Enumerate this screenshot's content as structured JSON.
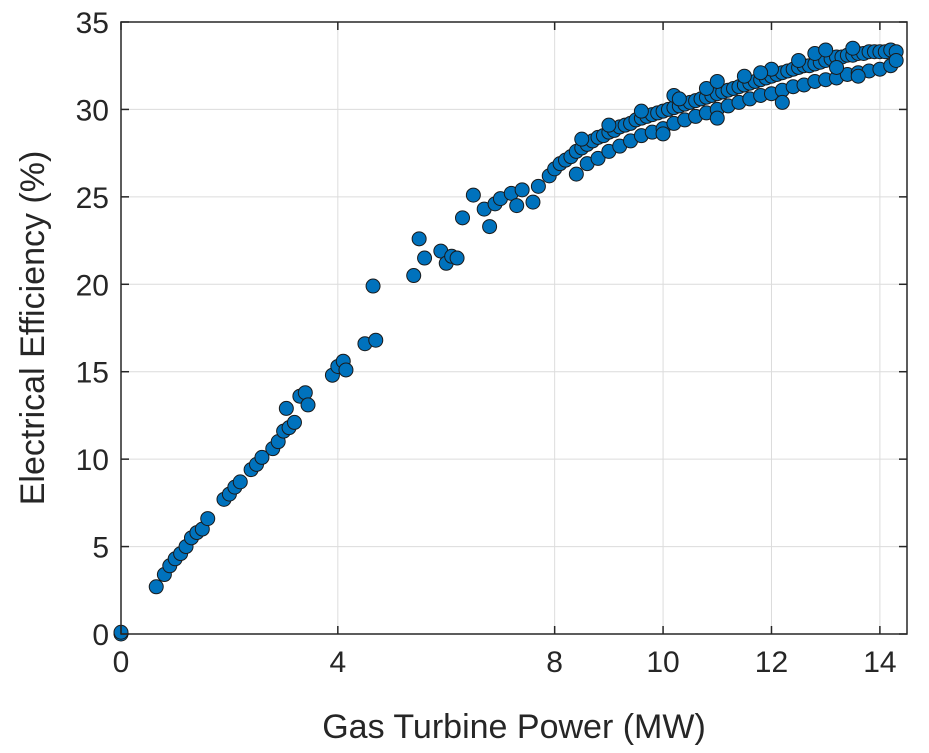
{
  "chart_data": {
    "type": "scatter",
    "title": "",
    "xlabel": "Gas Turbine Power (MW)",
    "ylabel": "Electrical Efficiency (%)",
    "xlim": [
      0,
      14.5
    ],
    "ylim": [
      0,
      35
    ],
    "xticks": [
      0,
      4,
      8,
      10,
      12,
      14
    ],
    "yticks": [
      0,
      5,
      10,
      15,
      20,
      25,
      30,
      35
    ],
    "grid": true,
    "legend": "none",
    "marker": {
      "shape": "circle",
      "fill": "#0072BD",
      "edge": "#1a1a1a"
    },
    "series": [
      {
        "points": [
          [
            0.0,
            0.0
          ],
          [
            0.0,
            0.1
          ],
          [
            0.65,
            2.7
          ],
          [
            0.8,
            3.4
          ],
          [
            0.9,
            3.9
          ],
          [
            1.0,
            4.3
          ],
          [
            1.1,
            4.6
          ],
          [
            1.2,
            5.0
          ],
          [
            1.3,
            5.5
          ],
          [
            1.4,
            5.8
          ],
          [
            1.5,
            6.0
          ],
          [
            1.6,
            6.6
          ],
          [
            1.9,
            7.7
          ],
          [
            2.0,
            8.0
          ],
          [
            2.1,
            8.4
          ],
          [
            2.2,
            8.7
          ],
          [
            2.4,
            9.4
          ],
          [
            2.5,
            9.7
          ],
          [
            2.6,
            10.1
          ],
          [
            2.8,
            10.6
          ],
          [
            2.9,
            11.0
          ],
          [
            3.0,
            11.6
          ],
          [
            3.1,
            11.8
          ],
          [
            3.2,
            12.1
          ],
          [
            3.05,
            12.9
          ],
          [
            3.3,
            13.6
          ],
          [
            3.4,
            13.8
          ],
          [
            3.45,
            13.1
          ],
          [
            3.9,
            14.8
          ],
          [
            4.0,
            15.3
          ],
          [
            4.1,
            15.6
          ],
          [
            4.15,
            15.1
          ],
          [
            4.5,
            16.6
          ],
          [
            4.7,
            16.8
          ],
          [
            4.65,
            19.9
          ],
          [
            5.4,
            20.5
          ],
          [
            5.5,
            22.6
          ],
          [
            5.6,
            21.5
          ],
          [
            5.9,
            21.9
          ],
          [
            6.0,
            21.2
          ],
          [
            6.1,
            21.6
          ],
          [
            6.2,
            21.5
          ],
          [
            6.3,
            23.8
          ],
          [
            6.5,
            25.1
          ],
          [
            6.7,
            24.3
          ],
          [
            6.8,
            23.3
          ],
          [
            6.9,
            24.6
          ],
          [
            7.0,
            24.9
          ],
          [
            7.2,
            25.2
          ],
          [
            7.3,
            24.5
          ],
          [
            7.4,
            25.4
          ],
          [
            7.6,
            24.7
          ],
          [
            7.7,
            25.6
          ],
          [
            7.9,
            26.2
          ],
          [
            8.0,
            26.6
          ],
          [
            8.1,
            26.9
          ],
          [
            8.2,
            27.1
          ],
          [
            8.3,
            27.3
          ],
          [
            8.4,
            27.6
          ],
          [
            8.5,
            27.8
          ],
          [
            8.6,
            28.0
          ],
          [
            8.7,
            28.2
          ],
          [
            8.8,
            28.4
          ],
          [
            8.9,
            28.5
          ],
          [
            9.0,
            28.7
          ],
          [
            9.1,
            28.8
          ],
          [
            9.2,
            29.0
          ],
          [
            9.3,
            29.1
          ],
          [
            9.4,
            29.2
          ],
          [
            9.5,
            29.4
          ],
          [
            9.6,
            29.5
          ],
          [
            9.7,
            29.6
          ],
          [
            9.8,
            29.7
          ],
          [
            9.9,
            29.8
          ],
          [
            10.0,
            29.9
          ],
          [
            10.1,
            30.0
          ],
          [
            10.2,
            30.1
          ],
          [
            10.3,
            30.2
          ],
          [
            10.4,
            30.3
          ],
          [
            10.5,
            30.4
          ],
          [
            10.6,
            30.5
          ],
          [
            10.7,
            30.6
          ],
          [
            10.8,
            30.7
          ],
          [
            10.9,
            30.8
          ],
          [
            11.0,
            30.9
          ],
          [
            11.1,
            31.0
          ],
          [
            11.2,
            31.1
          ],
          [
            11.3,
            31.2
          ],
          [
            11.4,
            31.3
          ],
          [
            11.5,
            31.4
          ],
          [
            11.6,
            31.5
          ],
          [
            11.7,
            31.6
          ],
          [
            11.8,
            31.7
          ],
          [
            11.9,
            31.8
          ],
          [
            12.0,
            31.9
          ],
          [
            12.1,
            32.0
          ],
          [
            12.2,
            32.1
          ],
          [
            12.3,
            32.2
          ],
          [
            12.4,
            32.3
          ],
          [
            12.5,
            32.4
          ],
          [
            12.6,
            32.5
          ],
          [
            12.7,
            32.5
          ],
          [
            12.8,
            32.6
          ],
          [
            12.9,
            32.7
          ],
          [
            13.0,
            32.8
          ],
          [
            13.1,
            32.9
          ],
          [
            13.2,
            33.0
          ],
          [
            13.3,
            33.0
          ],
          [
            13.4,
            33.1
          ],
          [
            13.5,
            33.1
          ],
          [
            13.6,
            33.2
          ],
          [
            13.7,
            33.2
          ],
          [
            13.8,
            33.3
          ],
          [
            13.9,
            33.3
          ],
          [
            14.0,
            33.3
          ],
          [
            14.1,
            33.3
          ],
          [
            14.2,
            33.4
          ],
          [
            14.3,
            33.3
          ],
          [
            8.4,
            26.3
          ],
          [
            8.6,
            26.9
          ],
          [
            8.8,
            27.2
          ],
          [
            9.0,
            27.6
          ],
          [
            9.2,
            27.9
          ],
          [
            9.4,
            28.2
          ],
          [
            9.6,
            28.5
          ],
          [
            9.8,
            28.7
          ],
          [
            10.0,
            28.9
          ],
          [
            10.2,
            29.2
          ],
          [
            10.4,
            29.4
          ],
          [
            10.6,
            29.6
          ],
          [
            10.8,
            29.8
          ],
          [
            11.0,
            30.0
          ],
          [
            11.2,
            30.2
          ],
          [
            11.4,
            30.4
          ],
          [
            11.6,
            30.6
          ],
          [
            11.8,
            30.8
          ],
          [
            12.0,
            30.9
          ],
          [
            12.2,
            31.1
          ],
          [
            12.4,
            31.3
          ],
          [
            12.6,
            31.4
          ],
          [
            12.8,
            31.6
          ],
          [
            13.0,
            31.7
          ],
          [
            13.2,
            31.8
          ],
          [
            13.4,
            32.0
          ],
          [
            13.6,
            32.1
          ],
          [
            13.8,
            32.2
          ],
          [
            14.0,
            32.3
          ],
          [
            14.2,
            32.5
          ],
          [
            8.5,
            28.3
          ],
          [
            9.0,
            29.1
          ],
          [
            9.6,
            29.9
          ],
          [
            10.2,
            30.8
          ],
          [
            10.8,
            31.2
          ],
          [
            11.0,
            31.6
          ],
          [
            11.5,
            31.9
          ],
          [
            12.0,
            32.3
          ],
          [
            12.5,
            32.8
          ],
          [
            12.8,
            33.2
          ],
          [
            13.0,
            33.4
          ],
          [
            13.5,
            33.5
          ],
          [
            12.2,
            30.4
          ],
          [
            11.0,
            29.5
          ],
          [
            10.0,
            28.6
          ],
          [
            10.3,
            30.6
          ],
          [
            11.8,
            32.1
          ],
          [
            13.2,
            32.4
          ],
          [
            13.6,
            31.9
          ],
          [
            14.3,
            32.8
          ]
        ]
      }
    ]
  }
}
